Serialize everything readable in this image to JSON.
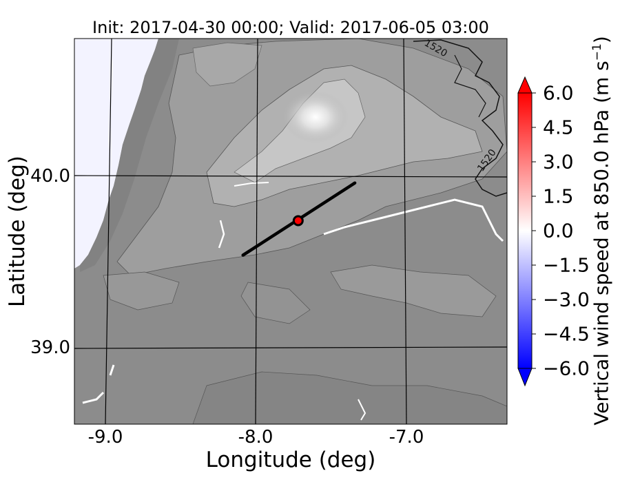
{
  "title": "Init: 2017-04-30 00:00; Valid: 2017-06-05 03:00",
  "xlabel": "Longitude (deg)",
  "ylabel": "Latitude (deg)",
  "colorbar": {
    "label_main": "Vertical wind speed at 850.0 hPa (m s",
    "label_sup": "−1",
    "label_end": ")",
    "ticks": [
      "6.0",
      "4.5",
      "3.0",
      "1.5",
      "0.0",
      "−1.5",
      "−3.0",
      "−4.5",
      "−6.0"
    ],
    "range": [
      -6.0,
      6.0
    ],
    "colors": {
      "max": "#ff0000",
      "mid": "#ffffff",
      "min": "#0000ff"
    }
  },
  "axes": {
    "x_ticks": [
      "-9.0",
      "-8.0",
      "-7.0"
    ],
    "y_ticks": [
      "40.0",
      "39.0"
    ],
    "xlim": [
      -9.25,
      -6.35
    ],
    "ylim": [
      38.45,
      40.8
    ]
  },
  "contour_labels": [
    "1520",
    "1520"
  ],
  "map": {
    "terrain_color": "#8c8c8c",
    "highland_color": "#d8d8d8",
    "cross_section": {
      "start": [
        -8.12,
        39.48
      ],
      "end": [
        -7.37,
        39.92
      ]
    },
    "point": {
      "lon": -7.75,
      "lat": 39.69,
      "color": "#ff0000"
    }
  }
}
